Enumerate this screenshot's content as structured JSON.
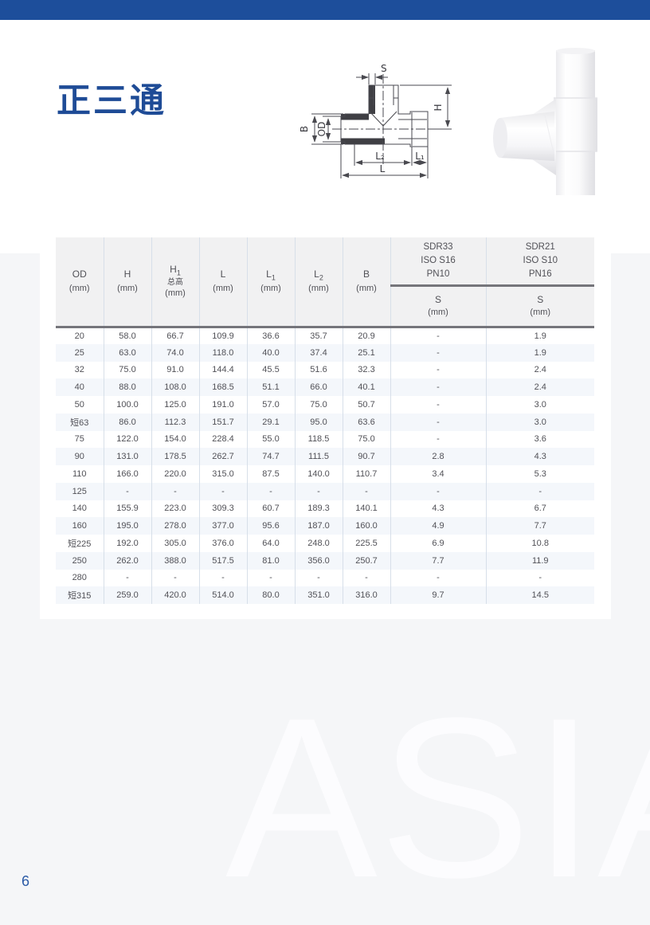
{
  "page": {
    "title": "正三通",
    "number": "6",
    "watermark": "ASIA"
  },
  "colors": {
    "accent_blue": "#1d4e9b",
    "title_blue": "#1e4b96",
    "page_bg": "#f5f6f8",
    "header_bg": "#f1f1f2",
    "row_stripe": "#f4f7fb",
    "cell_border": "#d7dfe9",
    "header_rule": "#75757b"
  },
  "diagram": {
    "labels": {
      "s": "S",
      "h": "H",
      "b": "B",
      "od": "OD",
      "l2": "L₂",
      "l1": "L₁",
      "l": "L"
    }
  },
  "table": {
    "columns": [
      {
        "label": "OD",
        "unit": "(mm)"
      },
      {
        "label": "H",
        "unit": "(mm)"
      },
      {
        "label": "H",
        "subscript": "1",
        "sub": "总高",
        "unit": "(mm)"
      },
      {
        "label": "L",
        "unit": "(mm)"
      },
      {
        "label": "L",
        "subscript": "1",
        "unit": "(mm)"
      },
      {
        "label": "L",
        "subscript": "2",
        "unit": "(mm)"
      },
      {
        "label": "B",
        "unit": "(mm)"
      }
    ],
    "pressure_groups": [
      {
        "line1": "SDR33",
        "line2": "ISO S16",
        "line3": "PN10",
        "sub_label": "S",
        "sub_unit": "(mm)"
      },
      {
        "line1": "SDR21",
        "line2": "ISO S10",
        "line3": "PN16",
        "sub_label": "S",
        "sub_unit": "(mm)"
      }
    ],
    "rows": [
      [
        "20",
        "58.0",
        "66.7",
        "109.9",
        "36.6",
        "35.7",
        "20.9",
        "-",
        "1.9"
      ],
      [
        "25",
        "63.0",
        "74.0",
        "118.0",
        "40.0",
        "37.4",
        "25.1",
        "-",
        "1.9"
      ],
      [
        "32",
        "75.0",
        "91.0",
        "144.4",
        "45.5",
        "51.6",
        "32.3",
        "-",
        "2.4"
      ],
      [
        "40",
        "88.0",
        "108.0",
        "168.5",
        "51.1",
        "66.0",
        "40.1",
        "-",
        "2.4"
      ],
      [
        "50",
        "100.0",
        "125.0",
        "191.0",
        "57.0",
        "75.0",
        "50.7",
        "-",
        "3.0"
      ],
      [
        "短63",
        "86.0",
        "112.3",
        "151.7",
        "29.1",
        "95.0",
        "63.6",
        "-",
        "3.0"
      ],
      [
        "75",
        "122.0",
        "154.0",
        "228.4",
        "55.0",
        "118.5",
        "75.0",
        "-",
        "3.6"
      ],
      [
        "90",
        "131.0",
        "178.5",
        "262.7",
        "74.7",
        "111.5",
        "90.7",
        "2.8",
        "4.3"
      ],
      [
        "110",
        "166.0",
        "220.0",
        "315.0",
        "87.5",
        "140.0",
        "110.7",
        "3.4",
        "5.3"
      ],
      [
        "125",
        "-",
        "-",
        "-",
        "-",
        "-",
        "-",
        "-",
        "-"
      ],
      [
        "140",
        "155.9",
        "223.0",
        "309.3",
        "60.7",
        "189.3",
        "140.1",
        "4.3",
        "6.7"
      ],
      [
        "160",
        "195.0",
        "278.0",
        "377.0",
        "95.6",
        "187.0",
        "160.0",
        "4.9",
        "7.7"
      ],
      [
        "短225",
        "192.0",
        "305.0",
        "376.0",
        "64.0",
        "248.0",
        "225.5",
        "6.9",
        "10.8"
      ],
      [
        "250",
        "262.0",
        "388.0",
        "517.5",
        "81.0",
        "356.0",
        "250.7",
        "7.7",
        "11.9"
      ],
      [
        "280",
        "-",
        "-",
        "-",
        "-",
        "-",
        "-",
        "-",
        "-"
      ],
      [
        "短315",
        "259.0",
        "420.0",
        "514.0",
        "80.0",
        "351.0",
        "316.0",
        "9.7",
        "14.5"
      ]
    ]
  }
}
